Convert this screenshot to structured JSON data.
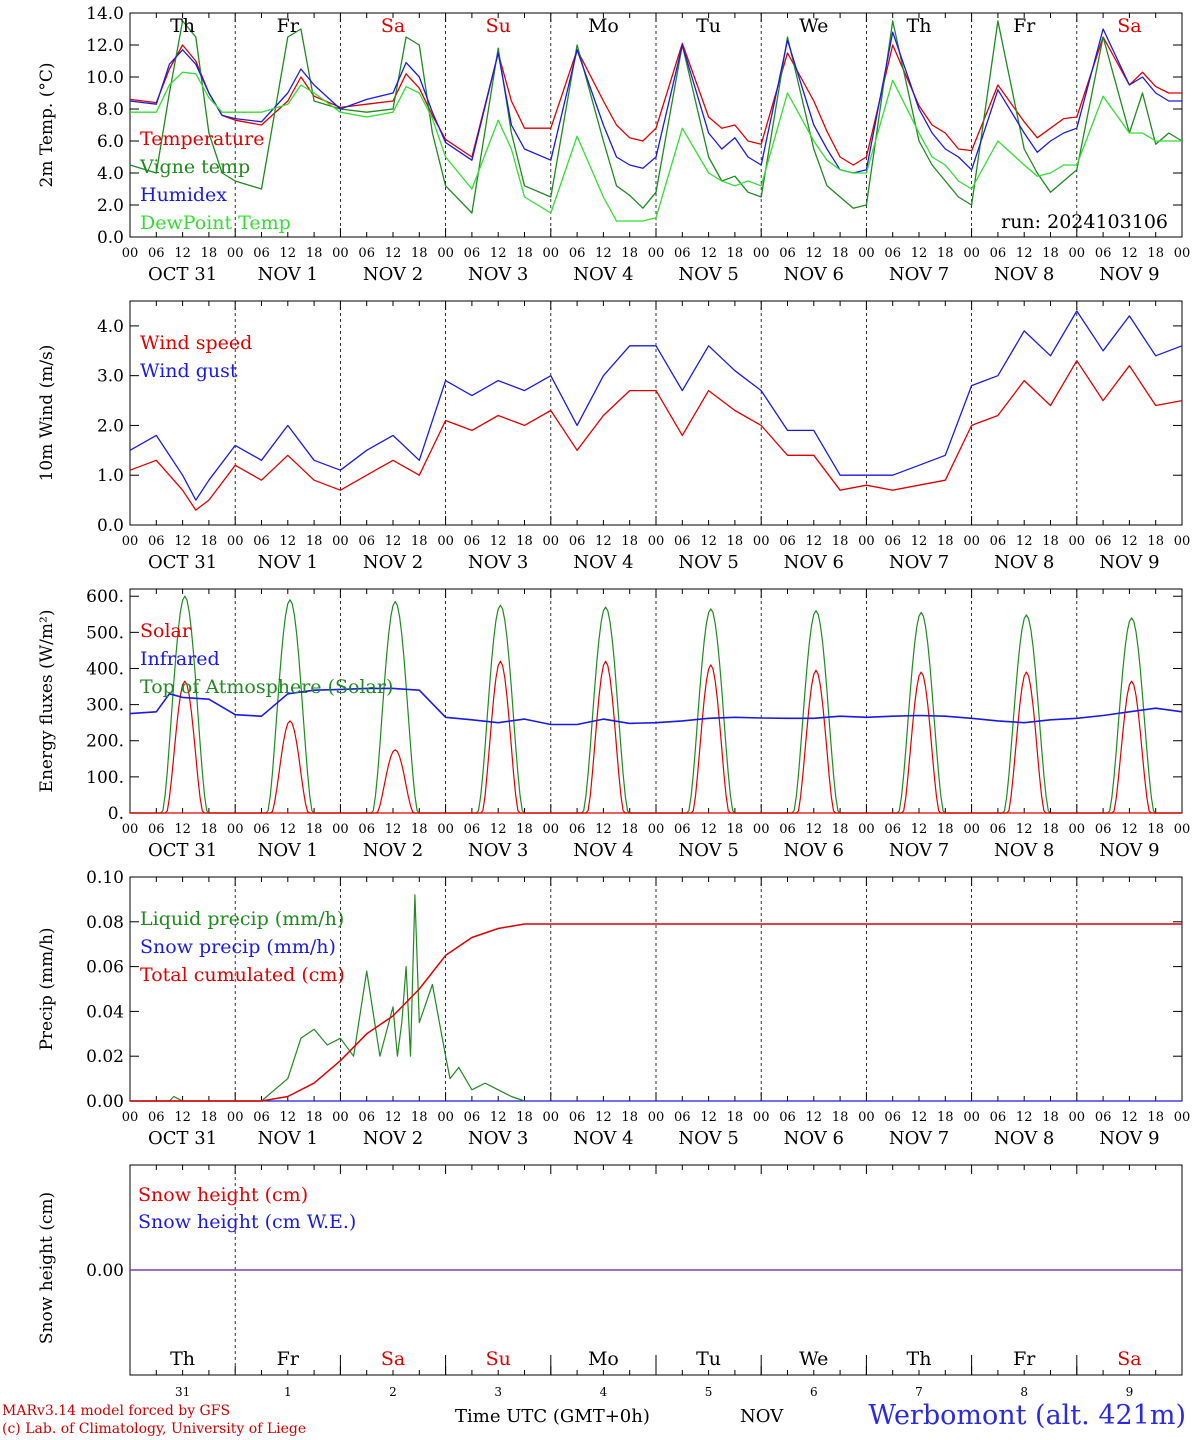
{
  "footer": {
    "model_line": "MARv3.14 model forced by GFS",
    "credit_line": "(c) Lab. of Climatology, University of Liege",
    "time_label": "Time UTC (GMT+0h)",
    "month_label": "NOV",
    "station": "Werbomont (alt. 421m)"
  },
  "run_label": "run: 2024103106",
  "hour_ticks": [
    "00",
    "06",
    "12",
    "18"
  ],
  "date_labels": [
    {
      "month": "OCT",
      "day": "31"
    },
    {
      "month": "NOV",
      "day": "1"
    },
    {
      "month": "NOV",
      "day": "2"
    },
    {
      "month": "NOV",
      "day": "3"
    },
    {
      "month": "NOV",
      "day": "4"
    },
    {
      "month": "NOV",
      "day": "5"
    },
    {
      "month": "NOV",
      "day": "6"
    },
    {
      "month": "NOV",
      "day": "7"
    },
    {
      "month": "NOV",
      "day": "8"
    },
    {
      "month": "NOV",
      "day": "9"
    }
  ],
  "weekdays": [
    {
      "label": "Th",
      "color": "#000000"
    },
    {
      "label": "Fr",
      "color": "#000000"
    },
    {
      "label": "Sa",
      "color": "#e00000"
    },
    {
      "label": "Su",
      "color": "#e00000"
    },
    {
      "label": "Mo",
      "color": "#000000"
    },
    {
      "label": "Tu",
      "color": "#000000"
    },
    {
      "label": "We",
      "color": "#000000"
    },
    {
      "label": "Th",
      "color": "#000000"
    },
    {
      "label": "Fr",
      "color": "#000000"
    },
    {
      "label": "Sa",
      "color": "#e00000"
    }
  ],
  "day_numbers": [
    "31",
    "1",
    "2",
    "3",
    "4",
    "5",
    "6",
    "7",
    "8",
    "9"
  ],
  "colors": {
    "red": "#e00000",
    "darkgreen": "#1f8a1f",
    "blue": "#1a1ae6",
    "lightgreen": "#33dd33",
    "purple": "#7f3fbf"
  },
  "chart_data": [
    {
      "type": "line",
      "ylabel": "2m Temp. (°C)",
      "ylim": [
        0,
        14
      ],
      "yticks": [
        "0.0",
        "2.0",
        "4.0",
        "6.0",
        "8.0",
        "10.0",
        "12.0",
        "14.0"
      ],
      "x": [
        0,
        6,
        9,
        12,
        15,
        18,
        21,
        24,
        30,
        36,
        39,
        42,
        48,
        54,
        60,
        63,
        66,
        69,
        72,
        78,
        84,
        87,
        90,
        96,
        102,
        108,
        111,
        114,
        117,
        120,
        126,
        132,
        135,
        138,
        141,
        144,
        150,
        156,
        159,
        162,
        165,
        168,
        174,
        180,
        183,
        186,
        189,
        192,
        198,
        204,
        207,
        210,
        213,
        216,
        222,
        228,
        231,
        234,
        237,
        240
      ],
      "series": [
        {
          "name": "Temperature",
          "color": "#e00000",
          "values": [
            8.6,
            8.4,
            10.5,
            12.0,
            11.0,
            9.0,
            7.6,
            7.3,
            7.0,
            8.5,
            10.0,
            8.8,
            8.1,
            8.3,
            8.5,
            10.2,
            9.3,
            7.6,
            6.1,
            5.0,
            11.5,
            8.5,
            6.8,
            6.8,
            11.7,
            8.5,
            7.0,
            6.2,
            6.0,
            6.8,
            12.1,
            7.5,
            6.8,
            7.0,
            6.0,
            5.8,
            11.5,
            8.5,
            6.6,
            5.0,
            4.5,
            5.0,
            12.0,
            8.2,
            7.0,
            6.5,
            5.5,
            5.4,
            9.5,
            7.2,
            6.2,
            6.8,
            7.4,
            7.5,
            12.5,
            9.5,
            10.3,
            9.4,
            9.0,
            9.0
          ]
        },
        {
          "name": "Vigne temp",
          "color": "#1f8a1f",
          "values": [
            4.5,
            4.0,
            9.0,
            13.5,
            12.5,
            6.5,
            4.0,
            3.5,
            3.0,
            12.5,
            13.0,
            8.5,
            8.0,
            7.8,
            8.0,
            12.5,
            12.0,
            6.5,
            3.2,
            1.5,
            11.8,
            6.5,
            3.2,
            2.5,
            12.0,
            6.0,
            3.2,
            2.6,
            1.8,
            2.8,
            12.0,
            5.0,
            3.5,
            3.8,
            2.8,
            2.5,
            12.5,
            5.5,
            3.2,
            2.5,
            1.8,
            2.0,
            13.5,
            6.0,
            4.5,
            3.5,
            2.5,
            2.0,
            13.5,
            5.5,
            4.0,
            2.8,
            3.5,
            4.2,
            12.5,
            6.5,
            9.0,
            5.8,
            6.5,
            6.0
          ]
        },
        {
          "name": "Humidex",
          "color": "#1a1ae6",
          "values": [
            8.5,
            8.3,
            10.8,
            11.7,
            10.8,
            9.0,
            7.6,
            7.4,
            7.2,
            9.0,
            10.5,
            9.5,
            8.0,
            8.6,
            9.0,
            10.9,
            10.0,
            7.8,
            5.9,
            4.8,
            11.5,
            7.0,
            5.5,
            4.8,
            11.7,
            7.0,
            5.0,
            4.5,
            4.3,
            5.0,
            12.0,
            6.5,
            5.5,
            6.2,
            5.0,
            4.5,
            12.3,
            7.0,
            5.5,
            4.2,
            4.0,
            4.2,
            12.8,
            8.0,
            6.5,
            5.5,
            5.0,
            4.2,
            9.2,
            6.5,
            5.3,
            6.0,
            6.5,
            6.8,
            13.0,
            9.5,
            10.0,
            9.0,
            8.5,
            8.5
          ]
        },
        {
          "name": "DewPoint Temp",
          "color": "#33dd33",
          "values": [
            7.8,
            7.8,
            9.5,
            10.3,
            10.2,
            8.7,
            7.8,
            7.8,
            7.8,
            8.3,
            9.5,
            9.0,
            7.8,
            7.5,
            7.8,
            9.4,
            9.0,
            7.4,
            5.0,
            3.0,
            7.3,
            5.5,
            2.5,
            1.5,
            6.3,
            2.5,
            1.0,
            1.0,
            1.0,
            1.2,
            6.8,
            4.0,
            3.5,
            3.2,
            3.5,
            3.2,
            9.0,
            6.0,
            4.8,
            4.2,
            4.0,
            4.0,
            9.8,
            6.5,
            5.0,
            4.5,
            3.5,
            3.0,
            6.0,
            4.5,
            3.8,
            4.0,
            4.5,
            4.5,
            8.8,
            6.5,
            6.5,
            6.0,
            6.0,
            6.0
          ]
        }
      ],
      "annotation": "run: 2024103106"
    },
    {
      "type": "line",
      "ylabel": "10m Wind (m/s)",
      "ylim": [
        0,
        4.5
      ],
      "yticks": [
        "0.0",
        "1.0",
        "2.0",
        "3.0",
        "4.0"
      ],
      "x": [
        0,
        6,
        12,
        15,
        18,
        24,
        30,
        36,
        42,
        48,
        54,
        60,
        66,
        72,
        78,
        84,
        90,
        96,
        102,
        108,
        114,
        120,
        126,
        132,
        138,
        144,
        150,
        156,
        162,
        168,
        174,
        180,
        186,
        192,
        198,
        204,
        210,
        216,
        222,
        228,
        234,
        240
      ],
      "series": [
        {
          "name": "Wind speed",
          "color": "#e00000",
          "values": [
            1.1,
            1.3,
            0.7,
            0.3,
            0.5,
            1.2,
            0.9,
            1.4,
            0.9,
            0.7,
            1.0,
            1.3,
            1.0,
            2.1,
            1.9,
            2.2,
            2.0,
            2.3,
            1.5,
            2.2,
            2.7,
            2.7,
            1.8,
            2.7,
            2.3,
            2.0,
            1.4,
            1.4,
            0.7,
            0.8,
            0.7,
            0.8,
            0.9,
            2.0,
            2.2,
            2.9,
            2.4,
            3.3,
            2.5,
            3.2,
            2.4,
            2.5
          ]
        },
        {
          "name": "Wind gust",
          "color": "#1a1ae6",
          "values": [
            1.5,
            1.8,
            1.0,
            0.5,
            0.9,
            1.6,
            1.3,
            2.0,
            1.3,
            1.1,
            1.5,
            1.8,
            1.3,
            2.9,
            2.6,
            2.9,
            2.7,
            3.0,
            2.0,
            3.0,
            3.6,
            3.6,
            2.7,
            3.6,
            3.1,
            2.7,
            1.9,
            1.9,
            1.0,
            1.0,
            1.0,
            1.2,
            1.4,
            2.8,
            3.0,
            3.9,
            3.4,
            4.3,
            3.5,
            4.2,
            3.4,
            3.6
          ]
        }
      ]
    },
    {
      "type": "line",
      "ylabel": "Energy fluxes (W/m²)",
      "ylim": [
        0,
        620
      ],
      "yticks": [
        "0.",
        "100.",
        "200.",
        "300.",
        "400.",
        "500.",
        "600."
      ],
      "days": 10,
      "series": [
        {
          "name": "Solar",
          "color": "#e00000",
          "peaks": [
            365,
            255,
            175,
            420,
            420,
            410,
            395,
            390,
            390,
            365
          ]
        },
        {
          "name": "Infrared",
          "color": "#1a1ae6",
          "x": [
            0,
            6,
            9,
            12,
            18,
            24,
            30,
            36,
            42,
            48,
            54,
            60,
            66,
            72,
            78,
            84,
            90,
            96,
            102,
            108,
            114,
            120,
            126,
            132,
            138,
            144,
            150,
            156,
            162,
            168,
            174,
            180,
            186,
            192,
            198,
            204,
            210,
            216,
            222,
            228,
            234,
            240
          ],
          "values": [
            275,
            280,
            330,
            320,
            315,
            272,
            268,
            330,
            340,
            342,
            345,
            345,
            340,
            265,
            258,
            250,
            260,
            245,
            245,
            260,
            248,
            250,
            255,
            262,
            265,
            263,
            262,
            262,
            268,
            265,
            268,
            270,
            268,
            262,
            255,
            250,
            258,
            262,
            270,
            280,
            290,
            280
          ]
        },
        {
          "name": "Top of Atmosphere (Solar)",
          "color": "#1f8a1f",
          "peaks": [
            600,
            590,
            585,
            575,
            570,
            565,
            560,
            555,
            548,
            540
          ]
        }
      ]
    },
    {
      "type": "line",
      "ylabel": "Precip (mm/h)",
      "ylim": [
        0,
        0.1
      ],
      "yticks": [
        "0.00",
        "0.02",
        "0.04",
        "0.06",
        "0.08",
        "0.10"
      ],
      "series": [
        {
          "name": "Liquid precip (mm/h)",
          "color": "#1f8a1f",
          "x": [
            0,
            9,
            10,
            11,
            12,
            24,
            30,
            33,
            36,
            39,
            42,
            45,
            48,
            51,
            54,
            57,
            60,
            61,
            62,
            63,
            64,
            65,
            66,
            69,
            72,
            73,
            75,
            78,
            81,
            84,
            87,
            90
          ],
          "values": [
            0,
            0,
            0.002,
            0.001,
            0,
            0,
            0,
            0.005,
            0.01,
            0.028,
            0.032,
            0.025,
            0.028,
            0.02,
            0.058,
            0.02,
            0.042,
            0.02,
            0.035,
            0.06,
            0.02,
            0.092,
            0.035,
            0.052,
            0.02,
            0.01,
            0.015,
            0.005,
            0.008,
            0.005,
            0.002,
            0
          ]
        },
        {
          "name": "Snow precip (mm/h)",
          "color": "#1a1ae6",
          "x": [
            0,
            240
          ],
          "values": [
            0,
            0
          ]
        },
        {
          "name": "Total cumulated (cm)",
          "color": "#e00000",
          "x": [
            0,
            24,
            30,
            36,
            42,
            48,
            54,
            60,
            66,
            72,
            78,
            84,
            90,
            96,
            240
          ],
          "values": [
            0,
            0,
            0,
            0.002,
            0.008,
            0.018,
            0.03,
            0.038,
            0.05,
            0.065,
            0.073,
            0.077,
            0.079,
            0.079,
            0.079
          ]
        }
      ]
    },
    {
      "type": "line",
      "ylabel": "Snow height (cm)",
      "yticks": [
        "0.00"
      ],
      "series": [
        {
          "name": "Snow height (cm)",
          "color": "#e00000",
          "x": [
            0,
            240
          ],
          "values": [
            0,
            0
          ]
        },
        {
          "name": "Snow height (cm W.E.)",
          "color": "#1a1ae6",
          "x": [
            0,
            240
          ],
          "values": [
            0,
            0
          ]
        }
      ]
    }
  ]
}
